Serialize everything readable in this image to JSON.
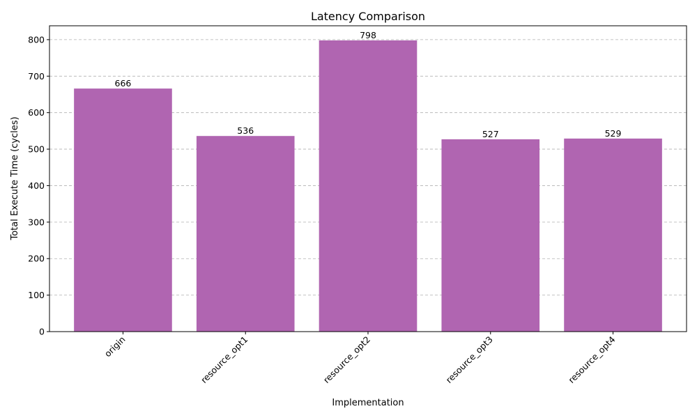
{
  "chart_data": {
    "type": "bar",
    "title": "Latency Comparison",
    "xlabel": "Implementation",
    "ylabel": "Total Execute Time (cycles)",
    "categories": [
      "origin",
      "resource_opt1",
      "resource_opt2",
      "resource_opt3",
      "resource_opt4"
    ],
    "values": [
      666,
      536,
      798,
      527,
      529
    ],
    "data_labels": [
      "666",
      "536",
      "798",
      "527",
      "529"
    ],
    "ylim": [
      0,
      838
    ],
    "yticks": [
      0,
      100,
      200,
      300,
      400,
      500,
      600,
      700,
      800
    ],
    "grid": "y-dashed",
    "legend": "none",
    "bar_color": "#b065b1"
  }
}
